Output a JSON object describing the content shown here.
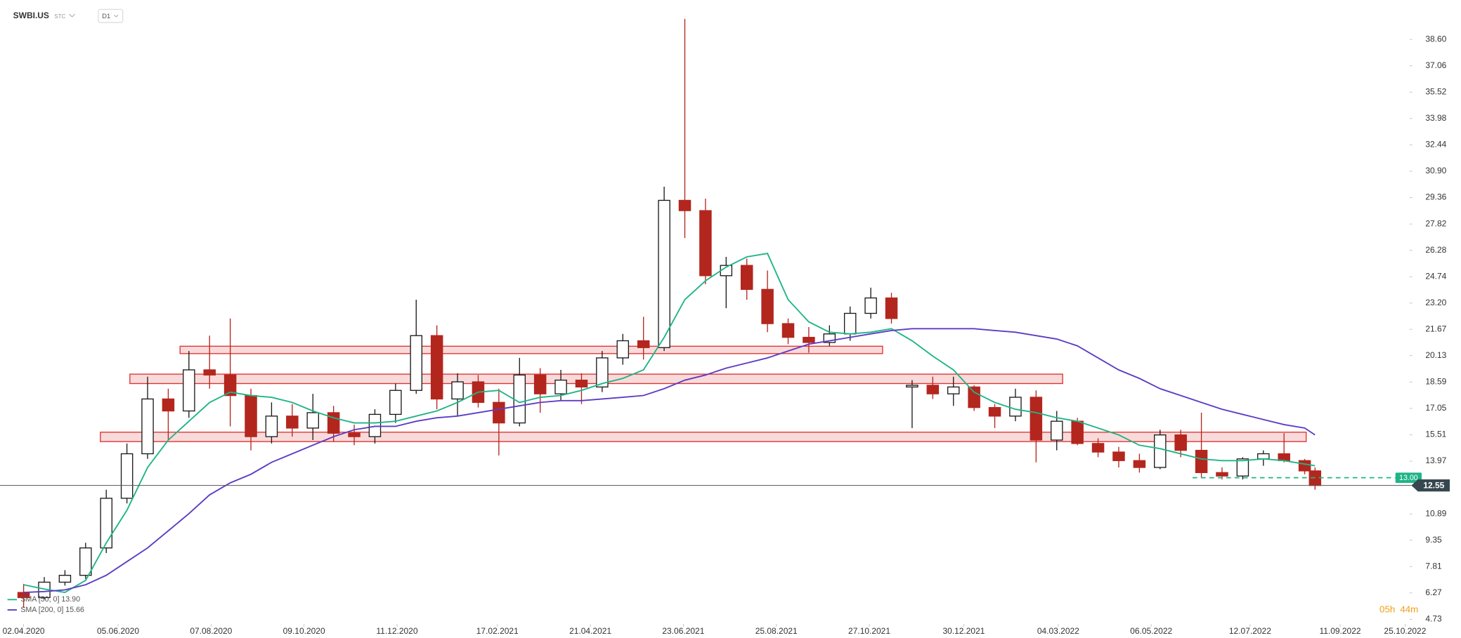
{
  "header": {
    "symbol": "SWBI.US",
    "market": "STC",
    "interval": "D1"
  },
  "countdown": {
    "hours": "05h",
    "minutes": "44m"
  },
  "chart_data": {
    "type": "candlestick",
    "up_color": "#1a1a1a",
    "down_color": "#b3261e",
    "xlim": [
      "17.03.2020",
      "28.10.2022"
    ],
    "ylim": [
      4.57,
      40.9
    ],
    "xticks": [
      "02.04.2020",
      "05.06.2020",
      "07.08.2020",
      "09.10.2020",
      "11.12.2020",
      "17.02.2021",
      "21.04.2021",
      "23.06.2021",
      "25.08.2021",
      "27.10.2021",
      "30.12.2021",
      "04.03.2022",
      "06.05.2022",
      "12.07.2022",
      "11.09.2022",
      "25.10.2022"
    ],
    "yticks": [
      {
        "value": 38.6,
        "label": "38.60"
      },
      37.06,
      35.52,
      33.98,
      32.44,
      {
        "value": 30.9,
        "label": "30.90"
      },
      29.36,
      27.82,
      26.28,
      24.74,
      {
        "value": 23.2,
        "label": "23.20"
      },
      21.67,
      20.13,
      18.59,
      17.05,
      15.51,
      13.97,
      10.89,
      9.35,
      7.81,
      6.27,
      4.73
    ],
    "x": [
      "02.04.2020",
      "16.04.2020",
      "30.04.2020",
      "14.05.2020",
      "28.05.2020",
      "11.06.2020",
      "25.06.2020",
      "09.07.2020",
      "23.07.2020",
      "06.08.2020",
      "20.08.2020",
      "03.09.2020",
      "17.09.2020",
      "01.10.2020",
      "15.10.2020",
      "29.10.2020",
      "12.11.2020",
      "26.11.2020",
      "10.12.2020",
      "24.12.2020",
      "07.01.2021",
      "21.01.2021",
      "04.02.2021",
      "18.02.2021",
      "04.03.2021",
      "18.03.2021",
      "01.04.2021",
      "15.04.2021",
      "29.04.2021",
      "13.05.2021",
      "27.05.2021",
      "10.06.2021",
      "24.06.2021",
      "08.07.2021",
      "22.07.2021",
      "05.08.2021",
      "19.08.2021",
      "02.09.2021",
      "16.09.2021",
      "30.09.2021",
      "14.10.2021",
      "28.10.2021",
      "11.11.2021",
      "25.11.2021",
      "09.12.2021",
      "23.12.2021",
      "06.01.2022",
      "20.01.2022",
      "03.02.2022",
      "17.02.2022",
      "03.03.2022",
      "17.03.2022",
      "31.03.2022",
      "14.04.2022",
      "28.04.2022",
      "12.05.2022",
      "26.05.2022",
      "09.06.2022",
      "23.06.2022",
      "07.07.2022",
      "21.07.2022",
      "04.08.2022",
      "18.08.2022",
      "25.08.2022"
    ],
    "open": [
      6.3,
      6.0,
      6.9,
      7.3,
      8.9,
      11.8,
      14.4,
      17.6,
      16.9,
      19.3,
      19.0,
      17.8,
      15.4,
      16.6,
      15.9,
      16.8,
      15.6,
      15.4,
      16.7,
      18.1,
      21.3,
      17.6,
      18.6,
      17.4,
      16.2,
      19.0,
      17.9,
      18.7,
      18.3,
      20.0,
      21.0,
      20.6,
      29.2,
      28.6,
      24.8,
      25.4,
      24.0,
      22.0,
      21.2,
      20.9,
      21.4,
      22.6,
      23.5,
      18.3,
      18.4,
      17.9,
      18.3,
      17.1,
      16.6,
      17.7,
      15.2,
      16.3,
      15.0,
      14.5,
      14.0,
      13.6,
      15.5,
      14.6,
      13.3,
      13.1,
      14.1,
      14.4,
      14.0,
      13.4
    ],
    "high": [
      6.8,
      7.2,
      7.6,
      9.2,
      12.3,
      15.0,
      18.9,
      18.2,
      20.4,
      21.3,
      22.3,
      18.2,
      17.4,
      17.3,
      17.9,
      17.2,
      16.1,
      17.0,
      18.5,
      23.4,
      21.9,
      19.1,
      19.0,
      18.2,
      20.0,
      19.4,
      19.3,
      19.1,
      20.4,
      21.4,
      22.4,
      30.0,
      39.8,
      29.3,
      25.9,
      25.8,
      25.1,
      22.3,
      21.8,
      21.9,
      23.0,
      24.1,
      23.8,
      18.7,
      18.9,
      18.9,
      18.4,
      17.3,
      18.2,
      18.1,
      16.9,
      16.5,
      15.3,
      14.8,
      14.4,
      15.8,
      15.8,
      16.8,
      13.6,
      14.2,
      14.6,
      15.6,
      14.1,
      13.6
    ],
    "low": [
      5.4,
      5.9,
      6.7,
      7.1,
      8.6,
      11.5,
      14.1,
      15.2,
      16.5,
      18.2,
      16.0,
      14.6,
      15.0,
      15.4,
      15.2,
      15.1,
      14.9,
      15.0,
      16.2,
      17.9,
      17.0,
      16.6,
      17.1,
      14.3,
      16.0,
      16.8,
      17.5,
      17.3,
      18.0,
      19.6,
      19.9,
      20.4,
      27.0,
      24.3,
      22.9,
      23.4,
      21.5,
      20.8,
      20.3,
      20.7,
      21.0,
      22.3,
      22.0,
      15.9,
      17.6,
      17.2,
      16.9,
      15.9,
      16.3,
      13.9,
      14.6,
      14.9,
      14.2,
      13.6,
      13.3,
      13.5,
      14.2,
      13.0,
      12.9,
      12.9,
      13.7,
      13.9,
      13.2,
      12.3
    ],
    "close": [
      6.0,
      6.9,
      7.3,
      8.9,
      11.8,
      14.4,
      17.6,
      16.9,
      19.3,
      19.0,
      17.8,
      15.4,
      16.6,
      15.9,
      16.8,
      15.6,
      15.4,
      16.7,
      18.1,
      21.3,
      17.6,
      18.6,
      17.4,
      16.2,
      19.0,
      17.9,
      18.7,
      18.3,
      20.0,
      21.0,
      20.6,
      29.2,
      28.6,
      24.8,
      25.4,
      24.0,
      22.0,
      21.2,
      20.9,
      21.4,
      22.6,
      23.5,
      22.3,
      18.4,
      17.9,
      18.3,
      17.1,
      16.6,
      17.7,
      15.2,
      16.3,
      15.0,
      14.5,
      14.0,
      13.6,
      15.5,
      14.6,
      13.3,
      13.1,
      14.1,
      14.4,
      14.0,
      13.4,
      12.55
    ],
    "series": [
      {
        "name": "SMA [50, 0] 13.90",
        "color": "#1fb487",
        "values": [
          6.75,
          6.5,
          6.3,
          7.0,
          9.2,
          11.1,
          13.6,
          15.2,
          16.3,
          17.4,
          18.0,
          17.8,
          17.7,
          17.4,
          16.9,
          16.5,
          16.2,
          16.2,
          16.3,
          16.6,
          16.9,
          17.4,
          18.0,
          18.1,
          17.4,
          17.7,
          17.8,
          18.1,
          18.5,
          18.8,
          19.3,
          21.2,
          23.4,
          24.5,
          25.3,
          25.9,
          26.1,
          23.4,
          22.1,
          21.5,
          21.4,
          21.5,
          21.7,
          21.0,
          20.1,
          19.3,
          18.0,
          17.4,
          17.0,
          16.8,
          16.5,
          16.3,
          15.9,
          15.5,
          14.9,
          14.7,
          14.4,
          14.1,
          14.0,
          14.0,
          14.1,
          14.0,
          13.8,
          13.7
        ]
      },
      {
        "name": "SMA [200, 0] 15.66",
        "color": "#5b3cc4",
        "values": [
          6.3,
          6.35,
          6.45,
          6.75,
          7.3,
          8.1,
          8.9,
          9.9,
          10.9,
          12.0,
          12.7,
          13.2,
          13.9,
          14.4,
          14.9,
          15.4,
          15.8,
          16.0,
          16.0,
          16.3,
          16.5,
          16.6,
          16.8,
          17.0,
          17.2,
          17.4,
          17.5,
          17.5,
          17.6,
          17.7,
          17.8,
          18.2,
          18.7,
          19.0,
          19.4,
          19.7,
          20.0,
          20.4,
          20.8,
          21.0,
          21.2,
          21.4,
          21.6,
          21.7,
          21.7,
          21.7,
          21.7,
          21.6,
          21.5,
          21.3,
          21.1,
          20.7,
          20.0,
          19.3,
          18.8,
          18.2,
          17.8,
          17.4,
          17.0,
          16.7,
          16.4,
          16.1,
          15.9,
          15.5
        ]
      }
    ],
    "zones": [
      {
        "x": [
          "17.07.2020",
          "05.11.2021"
        ],
        "y": [
          20.25,
          20.68
        ],
        "color": "#e03030"
      },
      {
        "x": [
          "13.06.2020",
          "07.03.2022"
        ],
        "y": [
          18.5,
          19.05
        ],
        "color": "#e03030"
      },
      {
        "x": [
          "24.05.2020",
          "19.08.2022"
        ],
        "y": [
          15.11,
          15.66
        ],
        "color": "#e03030"
      }
    ],
    "level": {
      "value": 13,
      "label": "13.00",
      "start": "03.06.2022",
      "color": "#1fb487"
    },
    "last_price": {
      "value": 12.55,
      "color": "#37474f"
    }
  }
}
